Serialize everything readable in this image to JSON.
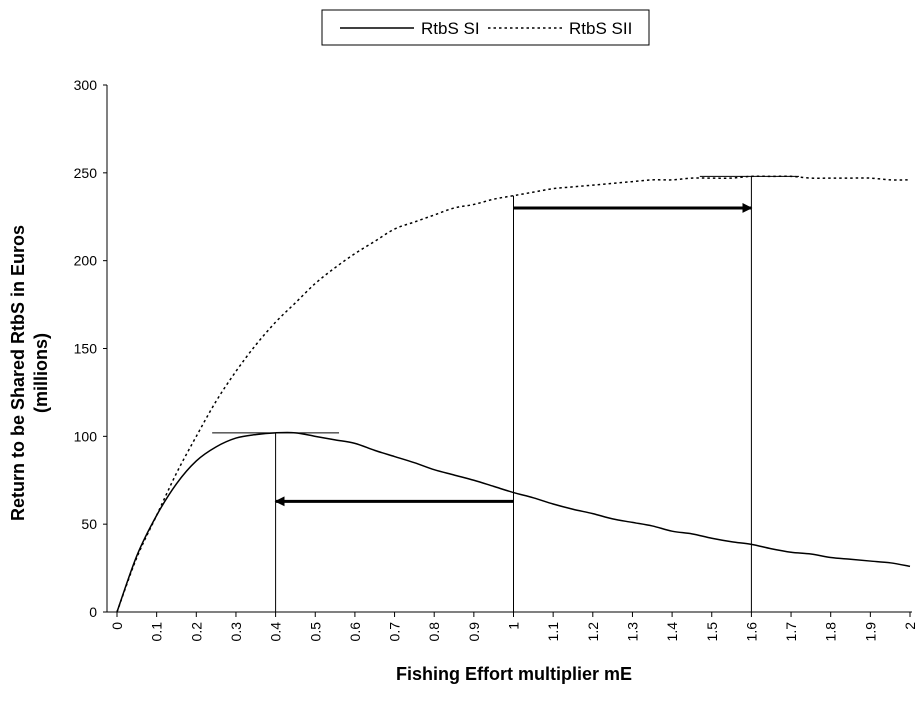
{
  "chart_data": {
    "type": "line",
    "x": [
      0,
      0.05,
      0.1,
      0.15,
      0.2,
      0.25,
      0.3,
      0.35,
      0.4,
      0.45,
      0.5,
      0.55,
      0.6,
      0.65,
      0.7,
      0.75,
      0.8,
      0.85,
      0.9,
      0.95,
      1.0,
      1.05,
      1.1,
      1.15,
      1.2,
      1.25,
      1.3,
      1.35,
      1.4,
      1.45,
      1.5,
      1.55,
      1.6,
      1.65,
      1.7,
      1.75,
      1.8,
      1.85,
      1.9,
      1.95,
      2.0
    ],
    "series": [
      {
        "name": "RtbS SI",
        "style": "solid",
        "values": [
          0,
          32,
          55,
          73,
          86,
          94,
          99,
          101,
          102,
          102,
          100,
          98,
          96,
          92,
          88.5,
          85,
          81,
          78,
          75,
          71.5,
          68,
          65,
          61.5,
          58.5,
          56,
          53,
          51,
          49,
          46,
          44.5,
          42,
          40,
          38.5,
          36,
          34,
          33,
          31,
          30,
          29,
          28,
          26
        ]
      },
      {
        "name": "RtbS SII",
        "style": "dotted",
        "values": [
          0,
          31,
          55,
          79,
          100,
          120,
          137,
          152,
          165,
          176,
          187,
          196,
          204,
          211,
          218,
          222,
          226,
          230,
          232,
          235,
          237,
          239,
          241,
          242,
          243,
          244,
          245,
          246,
          246,
          247,
          247,
          247,
          248,
          248,
          248,
          247,
          247,
          247,
          247,
          246,
          246
        ]
      }
    ],
    "xlabel": "Fishing Effort multiplier mE",
    "ylabel": "Return to be Shared RtbS in Euros (millions)",
    "ylabel_lines": [
      "Return to be Shared RtbS in Euros",
      "(millions)"
    ],
    "xlim": [
      0,
      2
    ],
    "ylim": [
      0,
      300
    ],
    "x_ticks": [
      "0",
      "0.1",
      "0.2",
      "0.3",
      "0.4",
      "0.5",
      "0.6",
      "0.7",
      "0.8",
      "0.9",
      "1",
      "1.1",
      "1.2",
      "1.3",
      "1.4",
      "1.5",
      "1.6",
      "1.7",
      "1.8",
      "1.9",
      "2"
    ],
    "y_ticks": [
      "0",
      "50",
      "100",
      "150",
      "200",
      "250",
      "300"
    ],
    "grid": false,
    "legend_position": "top-center",
    "annotations": {
      "vertical_lines": [
        0.4,
        1.0,
        1.6
      ],
      "max_markers": [
        {
          "x_from": 0.24,
          "x_to": 0.56,
          "y": 102
        },
        {
          "x_from": 1.47,
          "x_to": 1.72,
          "y": 248
        }
      ],
      "arrows": [
        {
          "from_x": 1.0,
          "to_x": 0.4,
          "y": 63
        },
        {
          "from_x": 1.0,
          "to_x": 1.6,
          "y": 230
        }
      ]
    },
    "colors": {
      "line": "#000000",
      "background": "#ffffff"
    }
  }
}
